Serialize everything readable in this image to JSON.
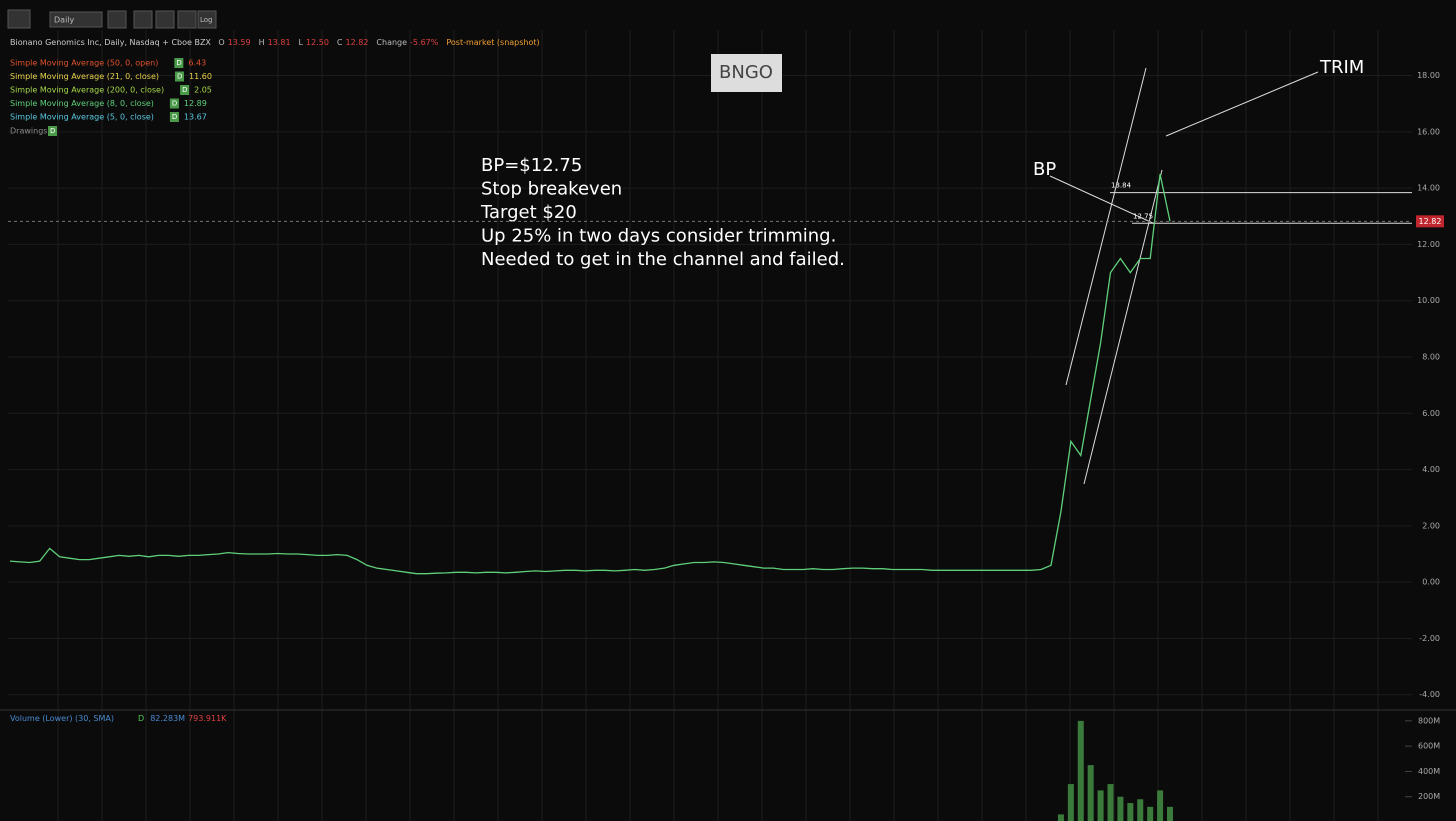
{
  "toolbar": {
    "interval": "Daily",
    "log": "Log"
  },
  "header": {
    "title": "Bionano Genomics Inc, Daily, Nasdaq + Cboe BZX",
    "o_label": "O",
    "open": "13.59",
    "h_label": "H",
    "high": "13.81",
    "l_label": "L",
    "low": "12.50",
    "c_label": "C",
    "close": "12.82",
    "change_label": "Change",
    "change": "-5.67%",
    "session": "Post-market (snapshot)"
  },
  "indicators": [
    {
      "name": "Simple Moving Average (50, 0, open)",
      "badge": "D",
      "value": "6.43",
      "color": "#e0522c"
    },
    {
      "name": "Simple Moving Average (21, 0, close)",
      "badge": "D",
      "value": "11.60",
      "color": "#e8d24a"
    },
    {
      "name": "Simple Moving Average (200, 0, close)",
      "badge": "D",
      "value": "2.05",
      "color": "#a6d84a"
    },
    {
      "name": "Simple Moving Average (8, 0, close)",
      "badge": "D",
      "value": "12.89",
      "color": "#5fd07a"
    },
    {
      "name": "Simple Moving Average (5, 0, close)",
      "badge": "D",
      "value": "13.67",
      "color": "#58c8e0"
    }
  ],
  "drawings": {
    "name": "Drawings",
    "badge": "D"
  },
  "annotations": {
    "symbol": "BNGO",
    "trim": "TRIM",
    "bp": "BP",
    "note": [
      "BP=$12.75",
      "Stop breakeven",
      "Target $20",
      "Up 25% in two days consider trimming.",
      "Needed to get in the channel and failed."
    ],
    "levels": [
      13.84,
      12.75
    ]
  },
  "volume_header": {
    "name": "Volume (Lower) (30, SMA)",
    "badge": "D",
    "volume": "82.283M",
    "sma": "793.911K"
  },
  "chart_data": {
    "type": "line",
    "color": "#5fd07a",
    "last": 12.82,
    "ylim": [
      -4.4,
      20.4
    ],
    "yticks": [
      {
        "value": -4,
        "label": "-4.00"
      },
      {
        "value": -2,
        "label": "-2.00"
      },
      {
        "value": 0,
        "label": "0.00"
      },
      {
        "value": 2,
        "label": "2.00"
      },
      {
        "value": 4,
        "label": "4.00"
      },
      {
        "value": 6,
        "label": "6.00"
      },
      {
        "value": 8,
        "label": "8.00"
      },
      {
        "value": 10,
        "label": "10.00"
      },
      {
        "value": 12,
        "label": "12.00"
      },
      {
        "value": 14,
        "label": "14.00"
      },
      {
        "value": 16,
        "label": "16.00"
      },
      {
        "value": 18,
        "label": "18.00"
      }
    ],
    "last_label": "12.82",
    "values": [
      0.75,
      0.72,
      0.7,
      0.75,
      1.2,
      0.9,
      0.85,
      0.8,
      0.8,
      0.85,
      0.9,
      0.95,
      0.92,
      0.95,
      0.9,
      0.95,
      0.95,
      0.92,
      0.95,
      0.95,
      0.98,
      1.0,
      1.05,
      1.02,
      1.0,
      1.0,
      1.0,
      1.02,
      1.0,
      1.0,
      0.98,
      0.95,
      0.95,
      0.98,
      0.95,
      0.8,
      0.6,
      0.5,
      0.45,
      0.4,
      0.35,
      0.3,
      0.3,
      0.32,
      0.33,
      0.35,
      0.35,
      0.33,
      0.35,
      0.35,
      0.33,
      0.35,
      0.38,
      0.4,
      0.38,
      0.4,
      0.42,
      0.42,
      0.4,
      0.42,
      0.42,
      0.4,
      0.42,
      0.45,
      0.42,
      0.45,
      0.5,
      0.6,
      0.65,
      0.7,
      0.7,
      0.72,
      0.7,
      0.65,
      0.6,
      0.55,
      0.5,
      0.5,
      0.45,
      0.45,
      0.45,
      0.48,
      0.45,
      0.45,
      0.48,
      0.5,
      0.5,
      0.48,
      0.48,
      0.45,
      0.45,
      0.45,
      0.45,
      0.42,
      0.42,
      0.42,
      0.42,
      0.42,
      0.42,
      0.42,
      0.42,
      0.42,
      0.42,
      0.42,
      0.45,
      0.6,
      2.5,
      5.0,
      4.5,
      6.5,
      8.5,
      11,
      11.5,
      11,
      11.5,
      11.5,
      14.5,
      12.82
    ],
    "volume": {
      "color": "#3a7a3a",
      "values": [
        60000000,
        300000000,
        800000000,
        450000000,
        250000000,
        300000000,
        200000000,
        150000000,
        180000000,
        120000000,
        250000000,
        120000000
      ],
      "ylim": [
        0,
        870000000
      ],
      "yticks": [
        {
          "value": 200000000,
          "label": "200M"
        },
        {
          "value": 400000000,
          "label": "400M"
        },
        {
          "value": 600000000,
          "label": "600M"
        },
        {
          "value": 800000000,
          "label": "800M"
        }
      ]
    }
  }
}
